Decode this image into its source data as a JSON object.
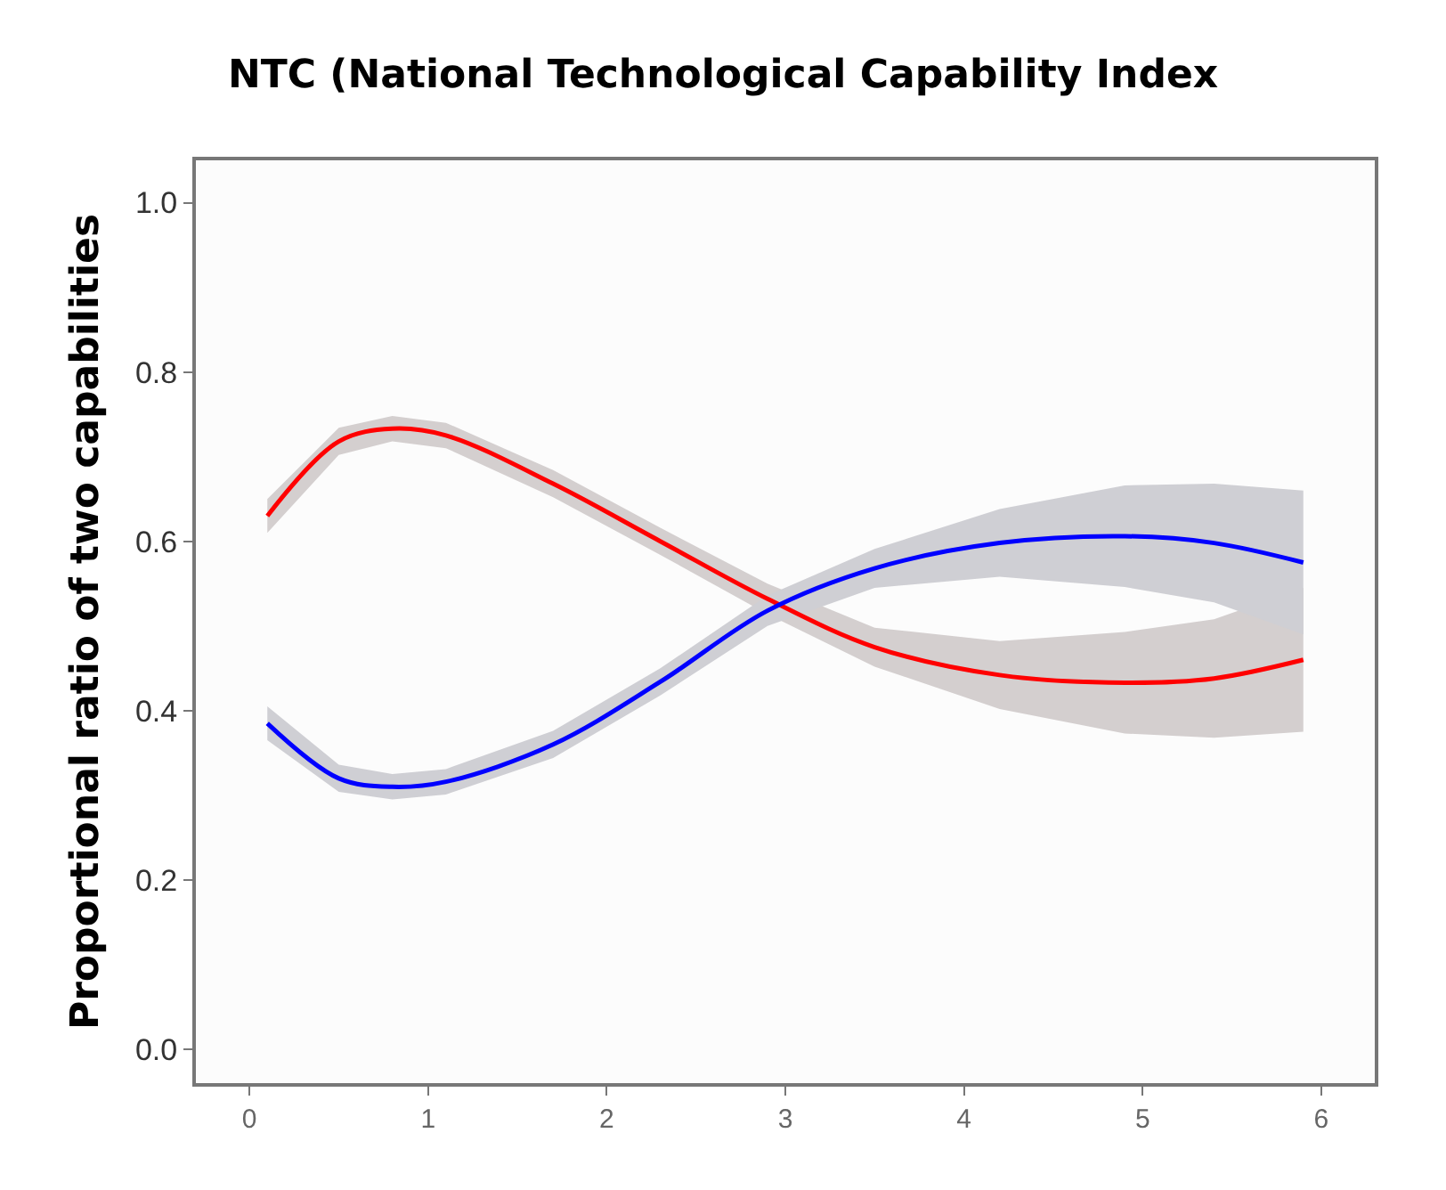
{
  "chart_data": {
    "type": "line",
    "title": "NTC (National Technological Capability Index",
    "ylabel": "Proportional ratio of two capabilities",
    "x": [
      0.1,
      0.5,
      0.8,
      1.1,
      1.7,
      2.3,
      2.9,
      3.5,
      4.2,
      4.9,
      5.4,
      5.9
    ],
    "series": [
      {
        "color": "#ff0000",
        "values": [
          0.63,
          0.718,
          0.733,
          0.725,
          0.668,
          0.6,
          0.532,
          0.475,
          0.442,
          0.433,
          0.438,
          0.46
        ],
        "lower": [
          0.61,
          0.702,
          0.718,
          0.71,
          0.652,
          0.584,
          0.514,
          0.452,
          0.402,
          0.373,
          0.368,
          0.375
        ],
        "upper": [
          0.65,
          0.734,
          0.748,
          0.74,
          0.684,
          0.616,
          0.55,
          0.498,
          0.482,
          0.493,
          0.508,
          0.545
        ]
      },
      {
        "color": "#0000ff",
        "values": [
          0.385,
          0.32,
          0.31,
          0.316,
          0.36,
          0.434,
          0.518,
          0.568,
          0.598,
          0.606,
          0.598,
          0.575
        ],
        "lower": [
          0.365,
          0.304,
          0.295,
          0.301,
          0.344,
          0.418,
          0.5,
          0.545,
          0.558,
          0.546,
          0.528,
          0.49
        ],
        "upper": [
          0.405,
          0.336,
          0.325,
          0.331,
          0.376,
          0.45,
          0.536,
          0.591,
          0.638,
          0.666,
          0.668,
          0.66
        ]
      }
    ],
    "xlim": [
      -0.3,
      6.3
    ],
    "xticks": [
      0,
      1,
      2,
      3,
      4,
      5,
      6
    ],
    "ylim": [
      -0.04,
      1.05
    ],
    "yticks": [
      {
        "value": 0,
        "label": "0.0"
      },
      0.2,
      0.4,
      0.6,
      0.8,
      {
        "value": 1,
        "label": "1.0"
      }
    ],
    "grid": false,
    "marker": "none",
    "line_style": "solid"
  }
}
